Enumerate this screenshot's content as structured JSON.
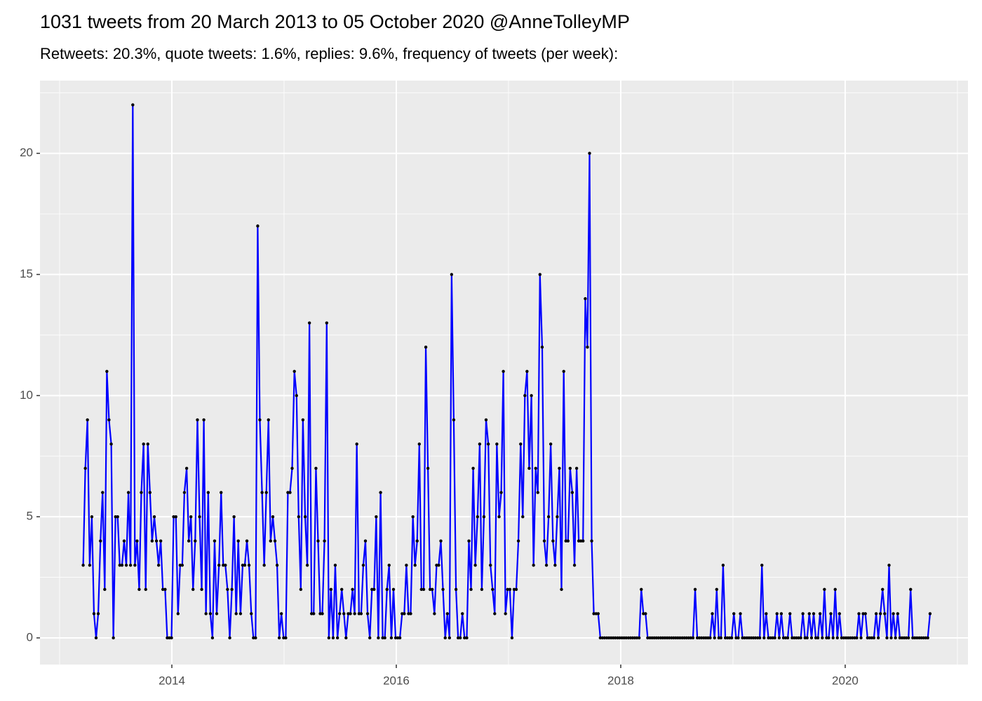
{
  "chart_data": {
    "type": "line",
    "title": "1031 tweets from 20 March 2013 to 05 October 2020 @AnneTolleyMP",
    "subtitle": "Retweets: 20.3%, quote tweets: 1.6%, replies: 9.6%, frequency of tweets (per week):",
    "xlim": [
      2012.825,
      2021.094
    ],
    "ylim": [
      -1.1,
      23.0
    ],
    "xticks": [
      2014,
      2016,
      2018,
      2020
    ],
    "yticks": [
      0,
      5,
      10,
      15,
      20
    ],
    "xminor": [
      2013,
      2015,
      2017,
      2019,
      2021
    ],
    "yminor": [
      2.5,
      7.5,
      12.5,
      17.5,
      22.5
    ],
    "grid": true,
    "line_color": "#0000ff",
    "point_color": "#000000",
    "x": [
      2013.21,
      2013.229,
      2013.248,
      2013.268,
      2013.287,
      2013.306,
      2013.325,
      2013.344,
      2013.364,
      2013.383,
      2013.402,
      2013.421,
      2013.44,
      2013.46,
      2013.479,
      2013.498,
      2013.517,
      2013.536,
      2013.556,
      2013.575,
      2013.594,
      2013.613,
      2013.632,
      2013.652,
      2013.671,
      2013.69,
      2013.709,
      2013.728,
      2013.748,
      2013.767,
      2013.786,
      2013.805,
      2013.824,
      2013.844,
      2013.863,
      2013.882,
      2013.901,
      2013.92,
      2013.94,
      2013.959,
      2013.978,
      2013.997,
      2014.016,
      2014.036,
      2014.055,
      2014.074,
      2014.093,
      2014.112,
      2014.132,
      2014.151,
      2014.17,
      2014.189,
      2014.208,
      2014.228,
      2014.247,
      2014.266,
      2014.285,
      2014.304,
      2014.324,
      2014.343,
      2014.362,
      2014.381,
      2014.4,
      2014.42,
      2014.439,
      2014.458,
      2014.477,
      2014.496,
      2014.516,
      2014.535,
      2014.554,
      2014.573,
      2014.592,
      2014.612,
      2014.631,
      2014.65,
      2014.669,
      2014.688,
      2014.708,
      2014.727,
      2014.746,
      2014.765,
      2014.784,
      2014.804,
      2014.823,
      2014.842,
      2014.861,
      2014.88,
      2014.9,
      2014.919,
      2014.938,
      2014.957,
      2014.976,
      2014.996,
      2015.015,
      2015.034,
      2015.053,
      2015.072,
      2015.092,
      2015.111,
      2015.13,
      2015.149,
      2015.168,
      2015.188,
      2015.207,
      2015.226,
      2015.245,
      2015.264,
      2015.284,
      2015.303,
      2015.322,
      2015.341,
      2015.36,
      2015.38,
      2015.399,
      2015.418,
      2015.437,
      2015.456,
      2015.476,
      2015.495,
      2015.514,
      2015.533,
      2015.552,
      2015.572,
      2015.591,
      2015.61,
      2015.629,
      2015.648,
      2015.668,
      2015.687,
      2015.706,
      2015.725,
      2015.744,
      2015.764,
      2015.783,
      2015.802,
      2015.821,
      2015.84,
      2015.86,
      2015.879,
      2015.898,
      2015.917,
      2015.936,
      2015.956,
      2015.975,
      2015.994,
      2016.013,
      2016.032,
      2016.052,
      2016.071,
      2016.09,
      2016.109,
      2016.128,
      2016.148,
      2016.167,
      2016.186,
      2016.205,
      2016.224,
      2016.244,
      2016.263,
      2016.282,
      2016.301,
      2016.32,
      2016.34,
      2016.359,
      2016.378,
      2016.397,
      2016.416,
      2016.436,
      2016.455,
      2016.474,
      2016.493,
      2016.512,
      2016.532,
      2016.551,
      2016.57,
      2016.589,
      2016.608,
      2016.628,
      2016.647,
      2016.666,
      2016.685,
      2016.704,
      2016.724,
      2016.743,
      2016.762,
      2016.781,
      2016.8,
      2016.82,
      2016.839,
      2016.858,
      2016.877,
      2016.896,
      2016.916,
      2016.935,
      2016.954,
      2016.973,
      2016.992,
      2017.012,
      2017.031,
      2017.05,
      2017.069,
      2017.088,
      2017.108,
      2017.127,
      2017.146,
      2017.165,
      2017.184,
      2017.204,
      2017.223,
      2017.242,
      2017.261,
      2017.28,
      2017.3,
      2017.319,
      2017.338,
      2017.357,
      2017.376,
      2017.396,
      2017.415,
      2017.434,
      2017.453,
      2017.472,
      2017.492,
      2017.511,
      2017.53,
      2017.549,
      2017.568,
      2017.588,
      2017.607,
      2017.626,
      2017.645,
      2017.664,
      2017.684,
      2017.703,
      2017.722,
      2017.741,
      2017.76,
      2017.78,
      2017.799,
      2017.818,
      2017.837,
      2017.856,
      2017.876,
      2017.895,
      2017.914,
      2017.933,
      2017.952,
      2017.972,
      2017.991,
      2018.01,
      2018.029,
      2018.048,
      2018.068,
      2018.087,
      2018.106,
      2018.125,
      2018.144,
      2018.164,
      2018.183,
      2018.202,
      2018.221,
      2018.24,
      2018.26,
      2018.279,
      2018.298,
      2018.317,
      2018.336,
      2018.356,
      2018.375,
      2018.394,
      2018.413,
      2018.432,
      2018.452,
      2018.471,
      2018.49,
      2018.509,
      2018.528,
      2018.548,
      2018.567,
      2018.586,
      2018.605,
      2018.624,
      2018.644,
      2018.663,
      2018.682,
      2018.701,
      2018.72,
      2018.74,
      2018.759,
      2018.778,
      2018.797,
      2018.816,
      2018.836,
      2018.855,
      2018.874,
      2018.893,
      2018.912,
      2018.932,
      2018.951,
      2018.97,
      2018.989,
      2019.008,
      2019.028,
      2019.047,
      2019.066,
      2019.085,
      2019.104,
      2019.124,
      2019.143,
      2019.162,
      2019.181,
      2019.2,
      2019.22,
      2019.239,
      2019.258,
      2019.277,
      2019.296,
      2019.316,
      2019.335,
      2019.354,
      2019.373,
      2019.392,
      2019.412,
      2019.431,
      2019.45,
      2019.469,
      2019.488,
      2019.508,
      2019.527,
      2019.546,
      2019.565,
      2019.584,
      2019.604,
      2019.623,
      2019.642,
      2019.661,
      2019.68,
      2019.7,
      2019.719,
      2019.738,
      2019.757,
      2019.776,
      2019.796,
      2019.815,
      2019.834,
      2019.853,
      2019.872,
      2019.892,
      2019.911,
      2019.93,
      2019.949,
      2019.968,
      2019.988,
      2020.007,
      2020.026,
      2020.045,
      2020.064,
      2020.084,
      2020.103,
      2020.122,
      2020.141,
      2020.16,
      2020.18,
      2020.199,
      2020.218,
      2020.237,
      2020.256,
      2020.276,
      2020.295,
      2020.314,
      2020.333,
      2020.352,
      2020.372,
      2020.391,
      2020.41,
      2020.429,
      2020.448,
      2020.468,
      2020.487,
      2020.506,
      2020.525,
      2020.544,
      2020.564,
      2020.583,
      2020.602,
      2020.621,
      2020.64,
      2020.66,
      2020.679,
      2020.698,
      2020.717,
      2020.736,
      2020.756
    ],
    "values": [
      3,
      7,
      9,
      3,
      5,
      1,
      0,
      1,
      4,
      6,
      2,
      11,
      9,
      8,
      0,
      5,
      5,
      3,
      3,
      4,
      3,
      6,
      3,
      22,
      3,
      4,
      2,
      6,
      8,
      2,
      8,
      6,
      4,
      5,
      4,
      3,
      4,
      2,
      2,
      0,
      0,
      0,
      5,
      5,
      1,
      3,
      3,
      6,
      7,
      4,
      5,
      2,
      4,
      9,
      5,
      2,
      9,
      1,
      6,
      1,
      0,
      4,
      1,
      3,
      6,
      3,
      3,
      2,
      0,
      2,
      5,
      1,
      4,
      1,
      3,
      3,
      4,
      3,
      1,
      0,
      0,
      17,
      9,
      6,
      3,
      6,
      9,
      4,
      5,
      4,
      3,
      0,
      1,
      0,
      0,
      6,
      6,
      7,
      11,
      10,
      5,
      2,
      9,
      5,
      3,
      13,
      1,
      1,
      7,
      4,
      1,
      1,
      4,
      13,
      0,
      2,
      0,
      3,
      0,
      1,
      2,
      1,
      0,
      1,
      1,
      2,
      1,
      8,
      1,
      1,
      3,
      4,
      1,
      0,
      2,
      2,
      5,
      0,
      6,
      0,
      0,
      2,
      3,
      0,
      2,
      0,
      0,
      0,
      1,
      1,
      3,
      1,
      1,
      5,
      3,
      4,
      8,
      2,
      2,
      12,
      7,
      2,
      2,
      1,
      3,
      3,
      4,
      2,
      0,
      1,
      0,
      15,
      9,
      2,
      0,
      0,
      1,
      0,
      0,
      4,
      2,
      7,
      3,
      5,
      8,
      2,
      5,
      9,
      8,
      3,
      2,
      1,
      8,
      5,
      6,
      11,
      1,
      2,
      2,
      0,
      2,
      2,
      4,
      8,
      5,
      10,
      11,
      7,
      10,
      3,
      7,
      6,
      15,
      12,
      4,
      3,
      5,
      8,
      4,
      3,
      5,
      7,
      2,
      11,
      4,
      4,
      7,
      6,
      3,
      7,
      4,
      4,
      4,
      14,
      12,
      20,
      4,
      1,
      1,
      1,
      0,
      0,
      0,
      0,
      0,
      0,
      0,
      0,
      0,
      0,
      0,
      0,
      0,
      0,
      0,
      0,
      0,
      0,
      0,
      2,
      1,
      1,
      0,
      0,
      0,
      0,
      0,
      0,
      0,
      0,
      0,
      0,
      0,
      0,
      0,
      0,
      0,
      0,
      0,
      0,
      0,
      0,
      0,
      0,
      2,
      0,
      0,
      0,
      0,
      0,
      0,
      0,
      1,
      0,
      2,
      0,
      0,
      3,
      0,
      0,
      0,
      0,
      1,
      0,
      0,
      1,
      0,
      0,
      0,
      0,
      0,
      0,
      0,
      0,
      0,
      3,
      0,
      1,
      0,
      0,
      0,
      0,
      1,
      0,
      1,
      0,
      0,
      0,
      1,
      0,
      0,
      0,
      0,
      0,
      1,
      0,
      0,
      1,
      0,
      1,
      0,
      0,
      1,
      0,
      2,
      0,
      0,
      1,
      0,
      2,
      0,
      1,
      0,
      0,
      0,
      0,
      0,
      0,
      0,
      0,
      1,
      0,
      1,
      1,
      0,
      0,
      0,
      0,
      1,
      0,
      1,
      2,
      1,
      0,
      3,
      0,
      1,
      0,
      1,
      0,
      0,
      0,
      0,
      0,
      2,
      0,
      0,
      0,
      0,
      0,
      0,
      0,
      0,
      1
    ]
  }
}
